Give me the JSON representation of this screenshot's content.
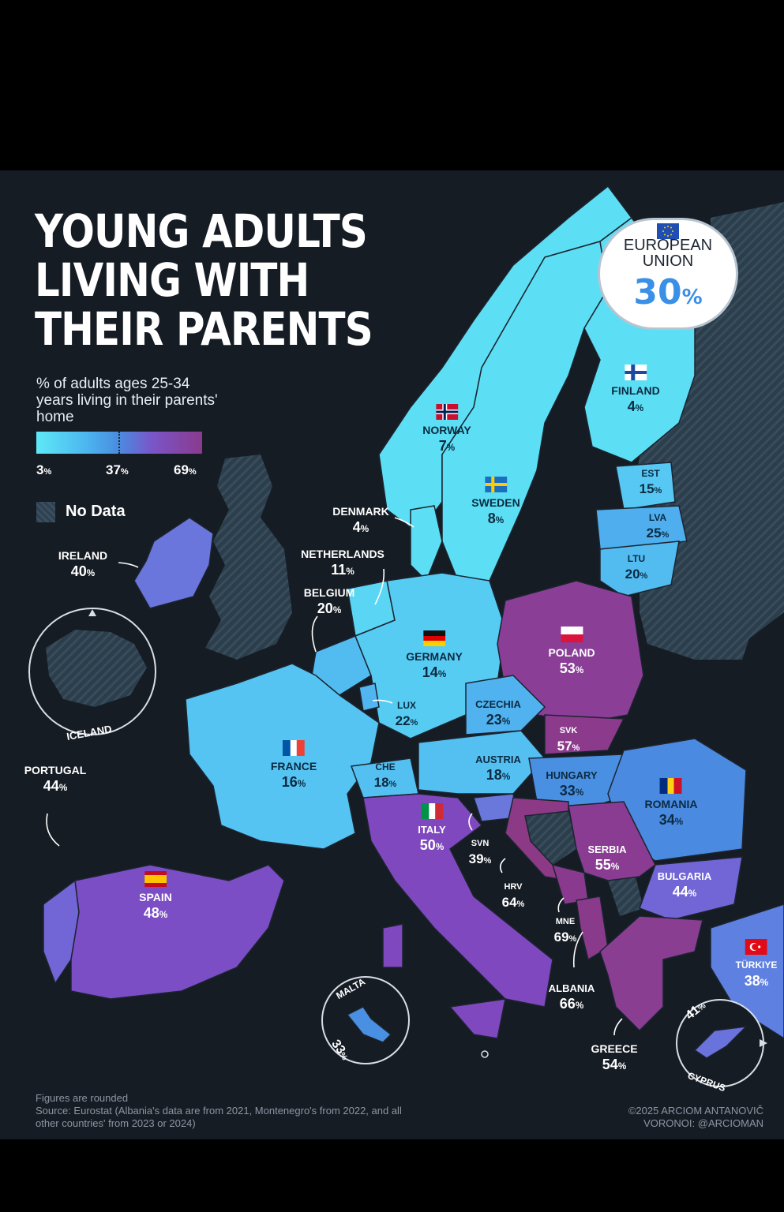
{
  "title": [
    "YOUNG ADULTS",
    "LIVING WITH",
    "THEIR PARENTS"
  ],
  "subtitle": "% of adults ages 25-34 years living in their parents' home",
  "legend": {
    "min": "3",
    "mid": "37",
    "max": "69",
    "unit": "%",
    "colors": [
      "#5ee9f7",
      "#4a8be0",
      "#8a3a8e"
    ],
    "no_data_label": "No Data"
  },
  "eu": {
    "name": "EUROPEAN UNION",
    "value": "30",
    "unit": "%"
  },
  "countries": {
    "finland": {
      "name": "FINLAND",
      "value": "4",
      "flag": "finland-flag",
      "color": "#5cdff4"
    },
    "norway": {
      "name": "NORWAY",
      "value": "7",
      "flag": "norway-flag",
      "color": "#5cdff4"
    },
    "sweden": {
      "name": "SWEDEN",
      "value": "8",
      "flag": "sweden-flag",
      "color": "#5cdff4"
    },
    "denmark": {
      "name": "DENMARK",
      "value": "4",
      "color": "#5cdff4"
    },
    "estonia": {
      "name": "EST",
      "value": "15",
      "color": "#56c8f3"
    },
    "latvia": {
      "name": "LVA",
      "value": "25",
      "color": "#4eaeee"
    },
    "lithuania": {
      "name": "LTU",
      "value": "20",
      "color": "#52bcf1"
    },
    "netherlands": {
      "name": "NETHERLANDS",
      "value": "11",
      "color": "#5ad6f4"
    },
    "belgium": {
      "name": "BELGIUM",
      "value": "20",
      "color": "#52bcf1"
    },
    "ireland": {
      "name": "IRELAND",
      "value": "40",
      "color": "#6a76dc"
    },
    "germany": {
      "name": "GERMANY",
      "value": "14",
      "flag": "germany-flag",
      "color": "#56ccf3"
    },
    "poland": {
      "name": "POLAND",
      "value": "53",
      "flag": "poland-flag",
      "color": "#8a3e96"
    },
    "luxembourg": {
      "name": "LUX",
      "value": "22",
      "color": "#50b5f0"
    },
    "czechia": {
      "name": "CZECHIA",
      "value": "23",
      "color": "#50b2ef"
    },
    "slovakia": {
      "name": "SVK",
      "value": "57",
      "color": "#8c3a8c"
    },
    "france": {
      "name": "FRANCE",
      "value": "16",
      "flag": "france-flag",
      "color": "#55c4f2"
    },
    "switzerland": {
      "name": "CHE",
      "value": "18",
      "color": "#54c0f2"
    },
    "austria": {
      "name": "AUSTRIA",
      "value": "18",
      "color": "#54c0f2"
    },
    "hungary": {
      "name": "HUNGARY",
      "value": "33",
      "color": "#4a90e2"
    },
    "romania": {
      "name": "ROMANIA",
      "value": "34",
      "flag": "romania-flag",
      "color": "#4a8ae0"
    },
    "portugal": {
      "name": "PORTUGAL",
      "value": "44",
      "color": "#7266d6"
    },
    "spain": {
      "name": "SPAIN",
      "value": "48",
      "flag": "spain-flag",
      "color": "#7c4ec6"
    },
    "italy": {
      "name": "ITALY",
      "value": "50",
      "flag": "italy-flag",
      "color": "#8048be"
    },
    "slovenia": {
      "name": "SVN",
      "value": "39",
      "color": "#6a78dc"
    },
    "serbia": {
      "name": "SERBIA",
      "value": "55",
      "color": "#8a3c92"
    },
    "croatia": {
      "name": "HRV",
      "value": "64",
      "color": "#8c3a86"
    },
    "bulgaria": {
      "name": "BULGARIA",
      "value": "44",
      "color": "#7266d6"
    },
    "montenegro": {
      "name": "MNE",
      "value": "69",
      "color": "#8a3a8e"
    },
    "turkiye": {
      "name": "TÜRKIYE",
      "value": "38",
      "flag": "turkiye-flag",
      "color": "#5e80e0"
    },
    "albania": {
      "name": "ALBANIA",
      "value": "66",
      "color": "#8a3a8a"
    },
    "greece": {
      "name": "GREECE",
      "value": "54",
      "color": "#8a3e92"
    },
    "malta": {
      "name": "MALTA",
      "value": "33",
      "color": "#4a90e2"
    },
    "cyprus": {
      "name": "CYPRUS",
      "value": "41",
      "color": "#6a72dc"
    },
    "iceland": {
      "name": "ICELAND"
    }
  },
  "footer": {
    "line1": "Figures are rounded",
    "line2": "Source: Eurostat (Albania's data are from 2021, Montenegro's from 2022, and all other countries' from 2023 or 2024)",
    "credit1": "©2025 ARCIOM ANTANOVIČ",
    "credit2": "VORONOI: @ARCIOMAN"
  }
}
